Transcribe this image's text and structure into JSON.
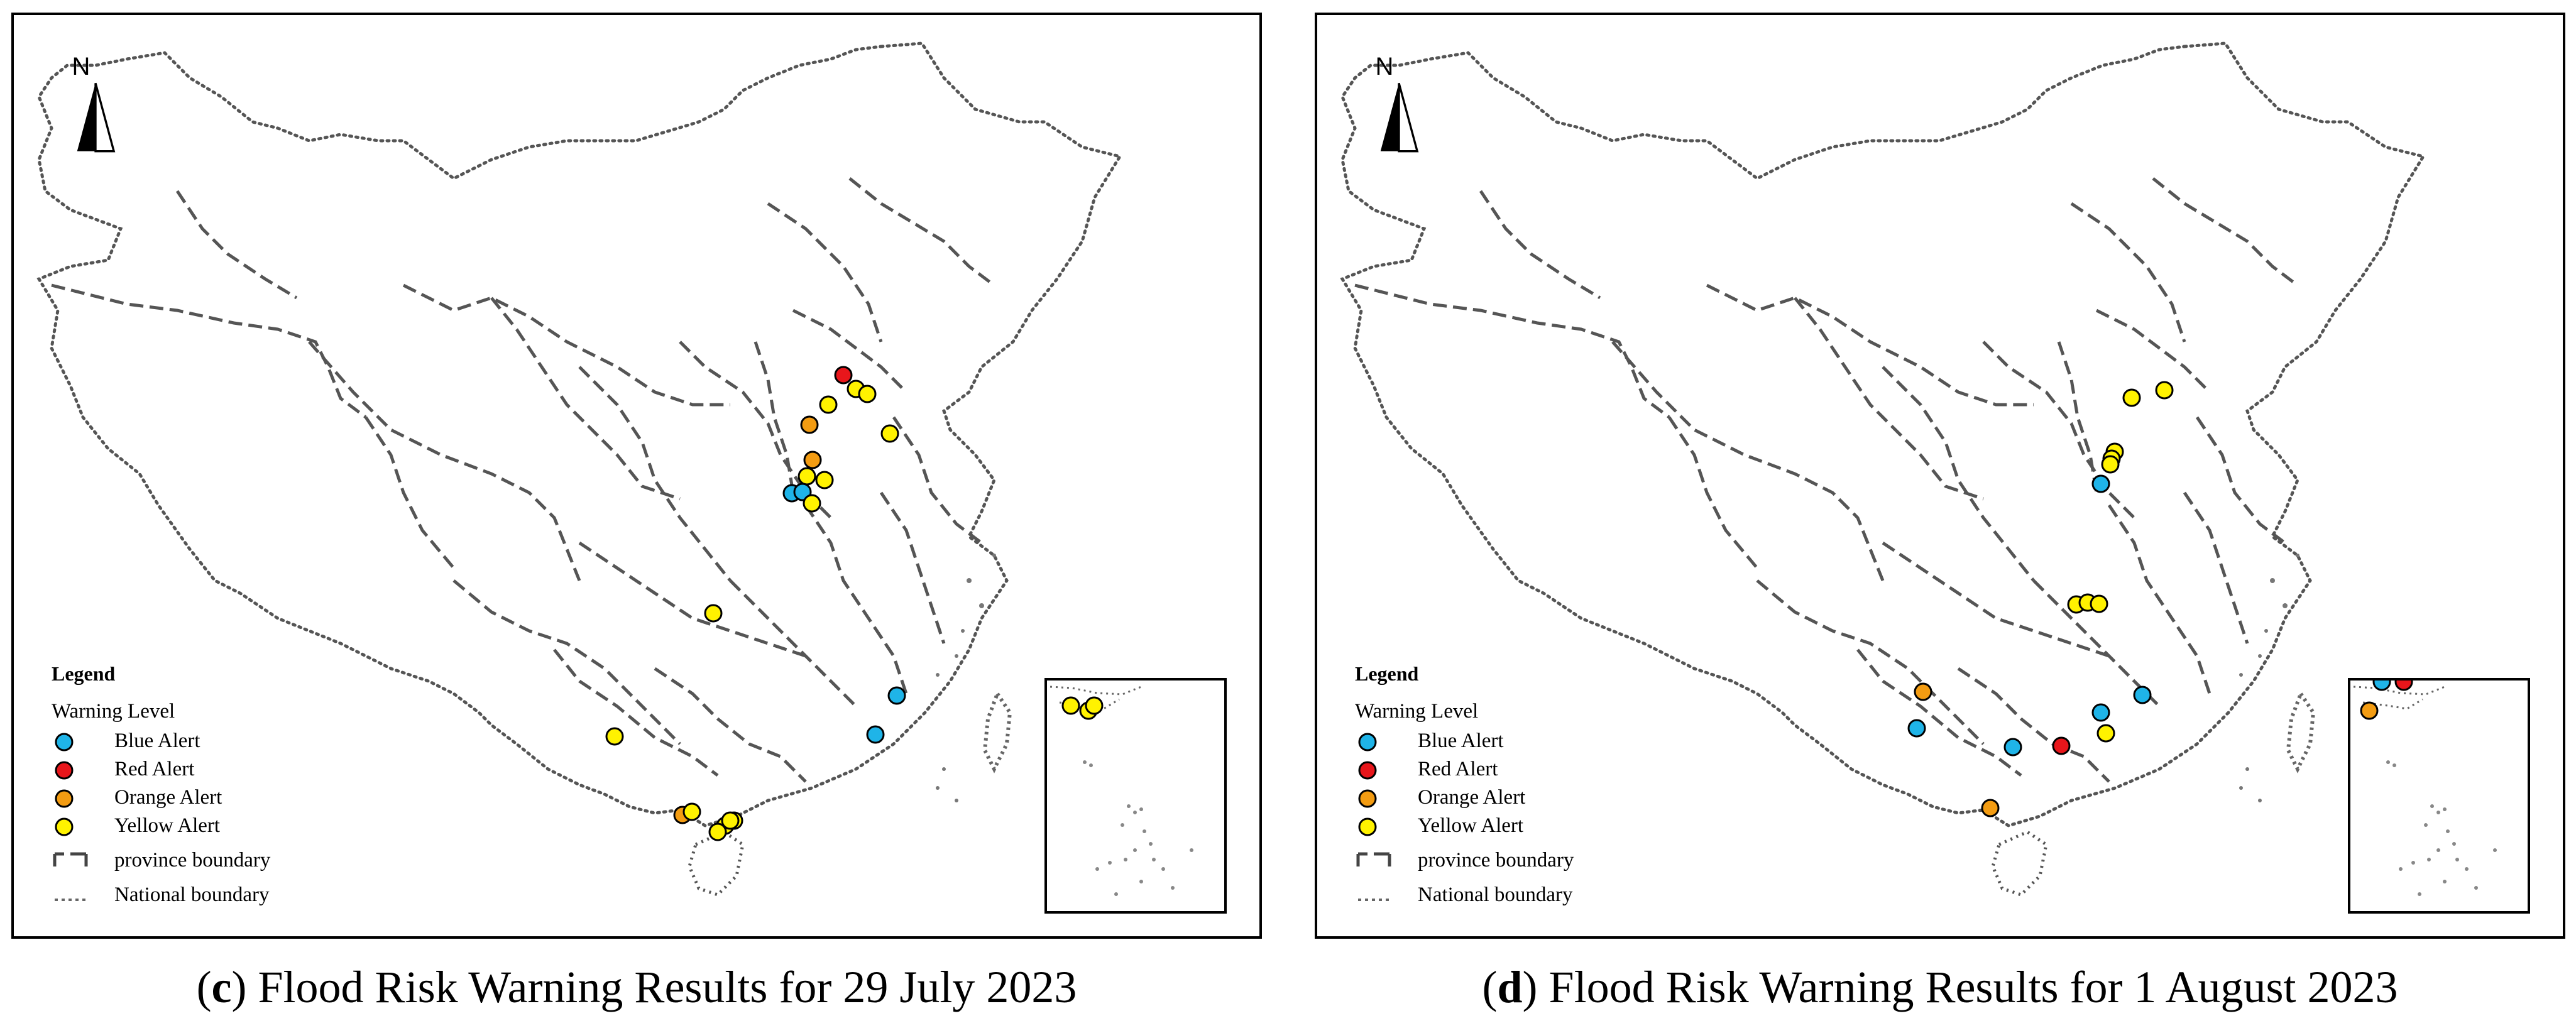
{
  "colors": {
    "blue_alert": "#1fb4e8",
    "red_alert": "#e8161b",
    "orange_alert": "#f39c12",
    "yellow_alert": "#fff200",
    "boundary": "#555555",
    "frame": "#000000"
  },
  "icons": {
    "north_arrow": "north-arrow-icon",
    "province_boundary": "dashed-line-icon",
    "national_boundary": "dotted-line-icon"
  },
  "panels": [
    {
      "compass_letter": "N",
      "legend": {
        "title": "Legend",
        "subtitle": "Warning Level",
        "items": [
          {
            "label": "Blue Alert",
            "symbol": "blue_alert"
          },
          {
            "label": "Red Alert",
            "symbol": "red_alert"
          },
          {
            "label": "Orange Alert",
            "symbol": "orange_alert"
          },
          {
            "label": "Yellow Alert",
            "symbol": "yellow_alert"
          },
          {
            "label": "province boundary",
            "symbol": "province_boundary"
          },
          {
            "label": "National boundary",
            "symbol": "national_boundary"
          }
        ]
      },
      "caption": {
        "letter": "c",
        "text": " Flood Risk Warning Results for 29 July 2023"
      },
      "warning_counts": {
        "blue_alert": 4,
        "red_alert": 1,
        "orange_alert": 4,
        "yellow_alert": 17
      }
    },
    {
      "compass_letter": "N",
      "legend": {
        "title": "Legend",
        "subtitle": "Warning Level",
        "items": [
          {
            "label": "Blue Alert",
            "symbol": "blue_alert"
          },
          {
            "label": "Red Alert",
            "symbol": "red_alert"
          },
          {
            "label": "Orange Alert",
            "symbol": "orange_alert"
          },
          {
            "label": "Yellow Alert",
            "symbol": "yellow_alert"
          },
          {
            "label": "province boundary",
            "symbol": "province_boundary"
          },
          {
            "label": "National boundary",
            "symbol": "national_boundary"
          }
        ]
      },
      "caption": {
        "letter": "d",
        "text": " Flood Risk Warning Results for 1 August 2023"
      },
      "warning_counts": {
        "blue_alert": 7,
        "red_alert": 2,
        "orange_alert": 3,
        "yellow_alert": 9
      }
    }
  ]
}
